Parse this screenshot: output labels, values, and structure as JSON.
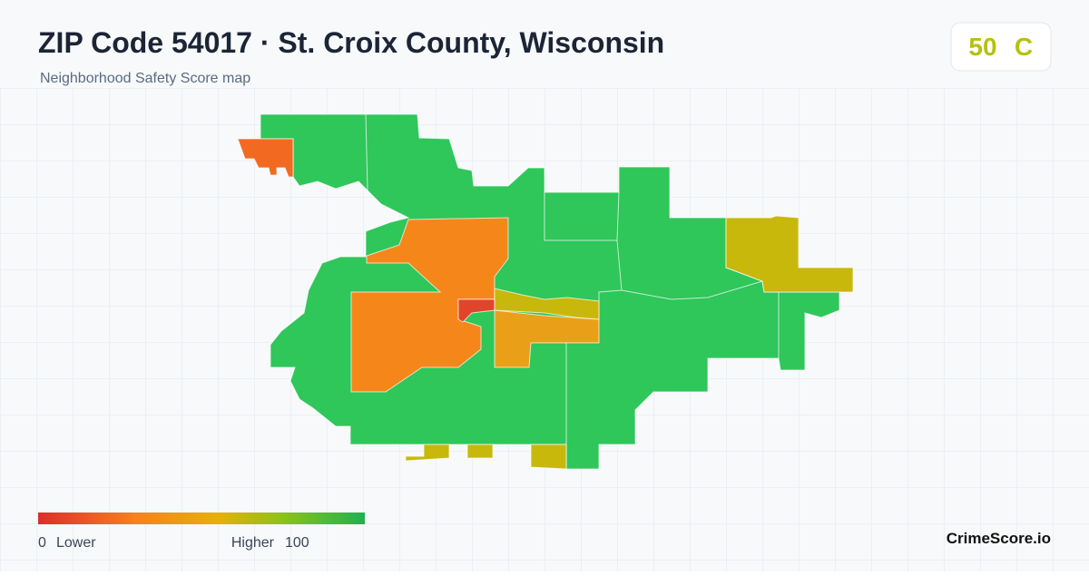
{
  "header": {
    "title": "ZIP Code 54017 · St. Croix County, Wisconsin",
    "subtitle": "Neighborhood Safety Score map"
  },
  "score": {
    "value": "50",
    "grade": "C"
  },
  "legend": {
    "min": "0",
    "min_label": "Lower",
    "max_label": "Higher",
    "max": "100"
  },
  "brand": "CrimeScore.io"
}
